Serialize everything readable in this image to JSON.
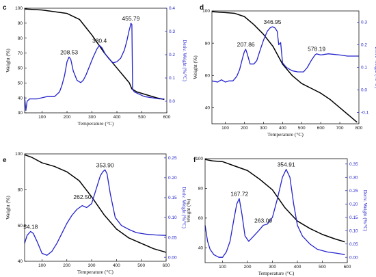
{
  "chart_data": [
    {
      "type": "line",
      "panel_label": "c",
      "xlabel": "Temperature (°C)",
      "ylabel": "Weight (%)",
      "y2label": "Deriv. Weight (%/°C)",
      "xlim": [
        30,
        600
      ],
      "ylim": [
        30,
        100
      ],
      "y2lim": [
        -0.05,
        0.4
      ],
      "xticks": [
        100,
        200,
        300,
        400,
        500,
        600
      ],
      "yticks": [
        30,
        40,
        50,
        60,
        70,
        80,
        90,
        100
      ],
      "y2ticks": [
        0.0,
        0.1,
        0.2,
        0.3,
        0.4
      ],
      "y2tick_labels": [
        "0.0",
        "0.1",
        "0.2",
        "0.3",
        "0.4"
      ],
      "grid": false,
      "annotations": [
        {
          "text": "208.53",
          "x": 208.53,
          "y": 0.19
        },
        {
          "text": "330.4",
          "x": 330.4,
          "y": 0.24
        },
        {
          "text": "455.79",
          "x": 455.79,
          "y": 0.335
        }
      ],
      "series": [
        {
          "axis": "left",
          "color": "#000000",
          "x": [
            30,
            100,
            200,
            250,
            300,
            350,
            400,
            430,
            450,
            460,
            480,
            520,
            560,
            590
          ],
          "y": [
            99.5,
            98.8,
            96.5,
            92.5,
            82,
            70,
            60,
            54,
            50,
            46,
            44,
            42,
            40,
            39
          ]
        },
        {
          "axis": "right",
          "color": "#2222cc",
          "x": [
            30,
            35,
            40,
            50,
            60,
            80,
            100,
            120,
            150,
            170,
            180,
            190,
            200,
            208,
            215,
            225,
            240,
            255,
            265,
            275,
            290,
            305,
            320,
            330,
            340,
            355,
            370,
            385,
            400,
            415,
            430,
            440,
            448,
            453,
            456,
            460,
            463,
            470,
            490,
            510,
            540,
            570,
            590
          ],
          "y": [
            0.02,
            -0.04,
            0.0,
            0.01,
            0.01,
            0.01,
            0.015,
            0.02,
            0.02,
            0.04,
            0.07,
            0.11,
            0.17,
            0.19,
            0.18,
            0.13,
            0.09,
            0.08,
            0.09,
            0.11,
            0.15,
            0.19,
            0.225,
            0.24,
            0.23,
            0.2,
            0.18,
            0.165,
            0.17,
            0.185,
            0.22,
            0.26,
            0.3,
            0.32,
            0.335,
            0.33,
            0.05,
            0.04,
            0.03,
            0.02,
            0.015,
            0.01,
            0.01
          ]
        }
      ]
    },
    {
      "type": "line",
      "panel_label": "d",
      "xlabel": "Temperature (°C)",
      "ylabel": "Weight (%)",
      "y2label": "Deriv. Weight (%/°C)",
      "xlim": [
        30,
        800
      ],
      "ylim": [
        30,
        100
      ],
      "y2lim": [
        -0.15,
        0.35
      ],
      "xticks": [
        100,
        200,
        300,
        400,
        500,
        600,
        700,
        800
      ],
      "yticks": [
        40,
        60,
        80,
        100
      ],
      "y2ticks": [
        -0.1,
        0.0,
        0.1,
        0.2,
        0.3
      ],
      "y2tick_labels": [
        "-0.1",
        "0.0",
        "0.1",
        "0.2",
        "0.3"
      ],
      "grid": false,
      "annotations": [
        {
          "text": "207.86",
          "x": 207.86,
          "y": 0.18
        },
        {
          "text": "346.95",
          "x": 346.95,
          "y": 0.28
        },
        {
          "text": "578.19",
          "x": 578.19,
          "y": 0.16
        }
      ],
      "series": [
        {
          "axis": "left",
          "color": "#000000",
          "x": [
            30,
            100,
            150,
            200,
            250,
            300,
            350,
            400,
            450,
            500,
            550,
            600,
            650,
            700,
            750,
            790
          ],
          "y": [
            99.5,
            99,
            98.5,
            96.5,
            91.5,
            85.5,
            78,
            67,
            60,
            55,
            52,
            49,
            45,
            40,
            35,
            31
          ]
        },
        {
          "axis": "right",
          "color": "#2222cc",
          "x": [
            30,
            60,
            80,
            100,
            120,
            140,
            160,
            175,
            190,
            200,
            207,
            215,
            230,
            250,
            265,
            280,
            300,
            320,
            335,
            347,
            360,
            372,
            380,
            390,
            400,
            420,
            450,
            480,
            510,
            530,
            550,
            570,
            578,
            600,
            640,
            700,
            740,
            780,
            800
          ],
          "y": [
            0.04,
            0.035,
            0.045,
            0.035,
            0.04,
            0.04,
            0.06,
            0.09,
            0.14,
            0.17,
            0.18,
            0.16,
            0.115,
            0.115,
            0.13,
            0.17,
            0.22,
            0.26,
            0.275,
            0.28,
            0.275,
            0.26,
            0.2,
            0.21,
            0.12,
            0.1,
            0.085,
            0.08,
            0.08,
            0.1,
            0.13,
            0.155,
            0.16,
            0.155,
            0.16,
            0.155,
            0.15,
            0.15,
            0.15
          ]
        }
      ]
    },
    {
      "type": "line",
      "panel_label": "e",
      "xlabel": "Temperature (°C)",
      "ylabel": "Weight (%)",
      "y2label": "Deriv. Weight (%/°C)",
      "xlim": [
        30,
        600
      ],
      "ylim": [
        40,
        100
      ],
      "y2lim": [
        -0.01,
        0.26
      ],
      "xticks": [
        100,
        200,
        300,
        400,
        500,
        600
      ],
      "yticks": [
        40,
        60,
        80,
        100
      ],
      "y2ticks": [
        0.0,
        0.05,
        0.1,
        0.15,
        0.2,
        0.25
      ],
      "y2tick_labels": [
        "0.00",
        "0.05",
        "0.10",
        "0.15",
        "0.20",
        "0.25"
      ],
      "grid": false,
      "annotations": [
        {
          "text": "54.18",
          "x": 54.18,
          "y": 0.065
        },
        {
          "text": "262.50",
          "x": 262.5,
          "y": 0.14
        },
        {
          "text": "353.90",
          "x": 353.9,
          "y": 0.22
        }
      ],
      "series": [
        {
          "axis": "left",
          "color": "#000000",
          "x": [
            30,
            60,
            100,
            150,
            200,
            250,
            300,
            350,
            400,
            450,
            500,
            550,
            600
          ],
          "y": [
            99.5,
            98,
            95,
            93,
            90,
            85,
            76,
            66,
            58,
            53,
            50,
            47,
            45
          ]
        },
        {
          "axis": "right",
          "color": "#2222cc",
          "x": [
            30,
            40,
            54,
            65,
            80,
            100,
            120,
            140,
            160,
            180,
            200,
            220,
            240,
            262,
            280,
            300,
            320,
            335,
            345,
            354,
            362,
            375,
            395,
            420,
            450,
            480,
            520,
            560,
            600
          ],
          "y": [
            0.035,
            0.055,
            0.065,
            0.06,
            0.04,
            0.01,
            0.005,
            0.015,
            0.035,
            0.06,
            0.085,
            0.105,
            0.12,
            0.13,
            0.125,
            0.135,
            0.175,
            0.205,
            0.215,
            0.22,
            0.21,
            0.16,
            0.1,
            0.08,
            0.07,
            0.062,
            0.058,
            0.056,
            0.055
          ]
        }
      ]
    },
    {
      "type": "line",
      "panel_label": "f",
      "xlabel": "Temperature (°C)",
      "ylabel": "Weight (%)",
      "y2label": "Deriv. Weight (%/°C)",
      "xlim": [
        30,
        600
      ],
      "ylim": [
        30,
        100
      ],
      "y2lim": [
        -0.02,
        0.37
      ],
      "xticks": [
        100,
        200,
        300,
        400,
        500,
        600
      ],
      "yticks": [
        40,
        60,
        80,
        100
      ],
      "y2ticks": [
        0.0,
        0.05,
        0.1,
        0.15,
        0.2,
        0.25,
        0.3,
        0.35
      ],
      "y2tick_labels": [
        "0.00",
        "0.05",
        "0.10",
        "0.15",
        "0.20",
        "0.25",
        "0.30",
        "0.35"
      ],
      "grid": false,
      "annotations": [
        {
          "text": "167.72",
          "x": 167.72,
          "y": 0.22
        },
        {
          "text": "263.09",
          "x": 263.09,
          "y": 0.12
        },
        {
          "text": "354.91",
          "x": 354.91,
          "y": 0.33
        }
      ],
      "series": [
        {
          "axis": "left",
          "color": "#000000",
          "x": [
            30,
            60,
            100,
            150,
            200,
            250,
            300,
            350,
            400,
            450,
            500,
            550,
            590
          ],
          "y": [
            99.5,
            98.5,
            98,
            95,
            92,
            86,
            79,
            67,
            58,
            53,
            49,
            46,
            44
          ]
        },
        {
          "axis": "right",
          "color": "#2222cc",
          "x": [
            30,
            40,
            50,
            65,
            85,
            100,
            115,
            130,
            145,
            157,
            167,
            178,
            190,
            205,
            225,
            245,
            263,
            280,
            300,
            320,
            340,
            355,
            370,
            385,
            400,
            420,
            450,
            480,
            520,
            560,
            590
          ],
          "y": [
            0.12,
            0.06,
            0.03,
            0.01,
            0.0,
            0.0,
            0.02,
            0.06,
            0.14,
            0.2,
            0.22,
            0.16,
            0.08,
            0.06,
            0.08,
            0.1,
            0.12,
            0.125,
            0.15,
            0.22,
            0.3,
            0.33,
            0.3,
            0.2,
            0.12,
            0.08,
            0.05,
            0.03,
            0.02,
            0.015,
            0.01
          ]
        }
      ]
    }
  ],
  "colors": {
    "weight_line": "#000000",
    "deriv_line": "#2222cc",
    "right_axis": "#2222cc"
  }
}
